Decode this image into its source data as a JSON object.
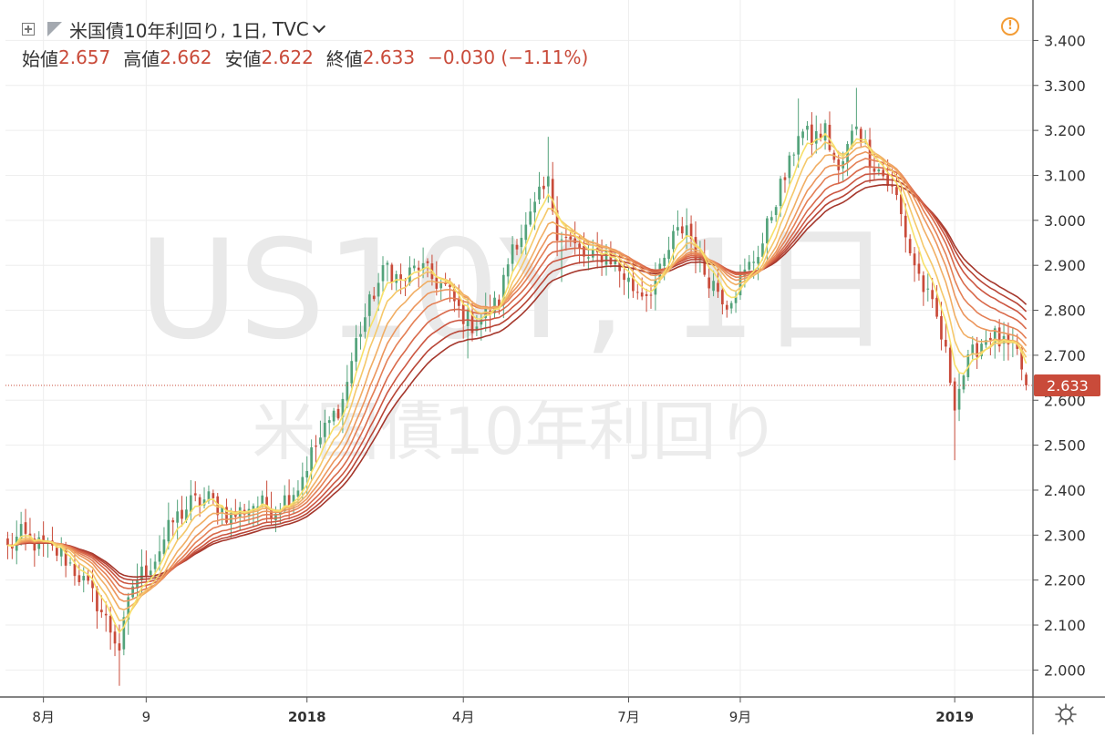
{
  "header": {
    "title": "米国債10年利回り",
    "separator1": ",",
    "interval": "1日",
    "separator2": ",",
    "exchange": "TVC"
  },
  "ohlc": {
    "open_label": "始値",
    "open_value": "2.657",
    "high_label": "高値",
    "high_value": "2.662",
    "low_label": "安値",
    "low_value": "2.622",
    "close_label": "終値",
    "close_value": "2.633",
    "change": "−0.030 (−1.11%)"
  },
  "watermark": {
    "symbol": "US10Y, 1日",
    "description": "米国債10年利回り"
  },
  "price_label": "2.633",
  "icons": {
    "alert": "alert-icon",
    "settings": "gear-icon",
    "add": "plus-box-icon",
    "flag": "flag-icon",
    "dropdown": "chevron-down-icon"
  },
  "colors": {
    "up": "#53a37b",
    "down": "#c94b3a",
    "price_line": "#c94b3a",
    "ribbon": [
      "#f7e06a",
      "#f5c86a",
      "#f1ae64",
      "#ec965d",
      "#e47f55",
      "#d96a4b",
      "#cc5641",
      "#b84536",
      "#a5372c"
    ]
  },
  "chart_data": {
    "type": "candlestick",
    "title": "米国債10年利回り, 1日, TVC",
    "ylim": [
      1.94,
      3.49
    ],
    "y_ticks": [
      "2.000",
      "2.100",
      "2.200",
      "2.300",
      "2.400",
      "2.500",
      "2.600",
      "2.700",
      "2.800",
      "2.900",
      "3.000",
      "3.100",
      "3.200",
      "3.300",
      "3.400"
    ],
    "x_ticks": [
      {
        "label": "8月",
        "index": 8
      },
      {
        "label": "9",
        "index": 31
      },
      {
        "label": "2018",
        "index": 67
      },
      {
        "label": "4月",
        "index": 102
      },
      {
        "label": "7月",
        "index": 139
      },
      {
        "label": "9月",
        "index": 164
      },
      {
        "label": "2019",
        "index": 212
      }
    ],
    "x_tick_bold": [
      "2018",
      "2019"
    ],
    "anchors": [
      [
        0,
        2.27
      ],
      [
        3,
        2.3
      ],
      [
        8,
        2.27
      ],
      [
        12,
        2.26
      ],
      [
        16,
        2.21
      ],
      [
        20,
        2.15
      ],
      [
        23,
        2.09
      ],
      [
        25,
        2.05
      ],
      [
        28,
        2.19
      ],
      [
        33,
        2.25
      ],
      [
        37,
        2.33
      ],
      [
        41,
        2.37
      ],
      [
        45,
        2.38
      ],
      [
        50,
        2.34
      ],
      [
        55,
        2.37
      ],
      [
        60,
        2.36
      ],
      [
        65,
        2.41
      ],
      [
        68,
        2.48
      ],
      [
        72,
        2.55
      ],
      [
        75,
        2.6
      ],
      [
        78,
        2.73
      ],
      [
        82,
        2.84
      ],
      [
        85,
        2.9
      ],
      [
        88,
        2.86
      ],
      [
        92,
        2.9
      ],
      [
        95,
        2.87
      ],
      [
        98,
        2.85
      ],
      [
        101,
        2.8
      ],
      [
        104,
        2.77
      ],
      [
        107,
        2.79
      ],
      [
        110,
        2.82
      ],
      [
        113,
        2.95
      ],
      [
        116,
        2.98
      ],
      [
        119,
        3.05
      ],
      [
        121,
        3.08
      ],
      [
        123,
        2.98
      ],
      [
        126,
        2.95
      ],
      [
        130,
        2.91
      ],
      [
        134,
        2.93
      ],
      [
        137,
        2.89
      ],
      [
        140,
        2.85
      ],
      [
        143,
        2.84
      ],
      [
        146,
        2.88
      ],
      [
        149,
        2.96
      ],
      [
        152,
        2.99
      ],
      [
        155,
        2.9
      ],
      [
        158,
        2.86
      ],
      [
        161,
        2.82
      ],
      [
        165,
        2.88
      ],
      [
        169,
        2.95
      ],
      [
        172,
        3.05
      ],
      [
        175,
        3.12
      ],
      [
        177,
        3.2
      ],
      [
        180,
        3.18
      ],
      [
        183,
        3.2
      ],
      [
        186,
        3.1
      ],
      [
        188,
        3.16
      ],
      [
        190,
        3.22
      ],
      [
        193,
        3.14
      ],
      [
        196,
        3.1
      ],
      [
        199,
        3.05
      ],
      [
        202,
        2.93
      ],
      [
        205,
        2.85
      ],
      [
        208,
        2.78
      ],
      [
        210,
        2.7
      ],
      [
        212,
        2.6
      ],
      [
        214,
        2.66
      ],
      [
        217,
        2.72
      ],
      [
        220,
        2.75
      ],
      [
        223,
        2.72
      ],
      [
        226,
        2.7
      ],
      [
        228,
        2.64
      ]
    ],
    "last_candle": {
      "open": 2.657,
      "high": 2.662,
      "low": 2.622,
      "close": 2.633
    },
    "ma_periods": [
      5,
      8,
      12,
      16,
      20,
      25,
      30,
      35,
      40
    ],
    "ma_type": "ema",
    "current_price": 2.633,
    "grid": true
  }
}
